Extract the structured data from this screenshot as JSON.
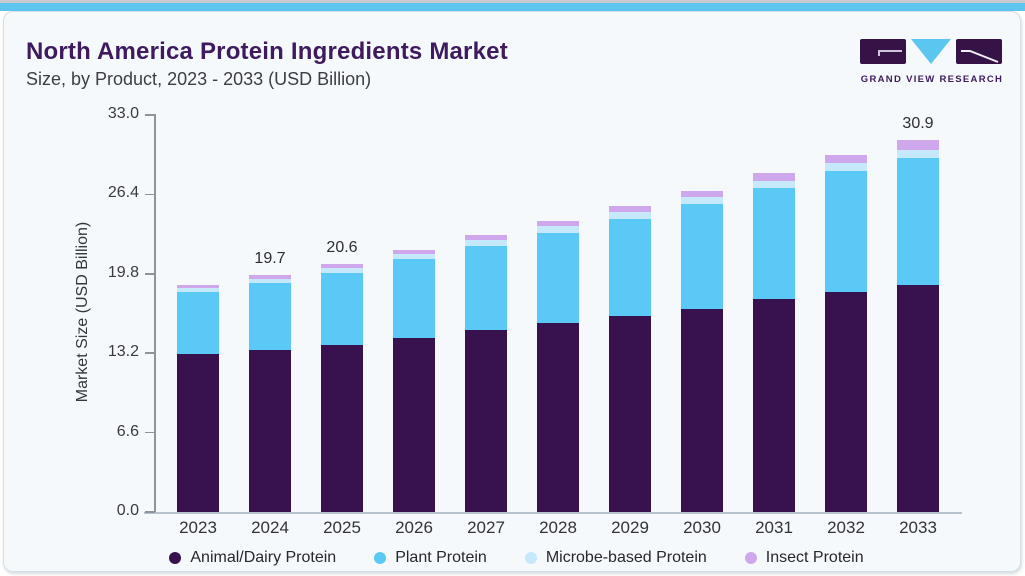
{
  "page": {
    "top_accent_color": "#5ec5ef",
    "card_background": "#f5f9fc"
  },
  "header": {
    "title": "North America Protein Ingredients Market",
    "subtitle": "Size, by Product, 2023 - 2033 (USD Billion)"
  },
  "brand": {
    "name": "GRAND VIEW RESEARCH",
    "logo_purple": "#351347",
    "logo_blue": "#5bc7f0"
  },
  "chart_data": {
    "type": "bar",
    "stacked": true,
    "title": "North America Protein Ingredients Market",
    "subtitle": "Size, by Product, 2023 - 2033 (USD Billion)",
    "xlabel": "",
    "ylabel": "Market Size (USD Billion)",
    "ylim": [
      0,
      33
    ],
    "ytick_labels": [
      "0.0",
      "6.6",
      "13.2",
      "19.8",
      "26.4",
      "33.0"
    ],
    "grid": false,
    "legend_position": "bottom",
    "categories": [
      "2023",
      "2024",
      "2025",
      "2026",
      "2027",
      "2028",
      "2029",
      "2030",
      "2031",
      "2032",
      "2033"
    ],
    "series": [
      {
        "name": "Animal/Dairy Protein",
        "color": "#37124e",
        "values": [
          13.1,
          13.5,
          13.9,
          14.5,
          15.1,
          15.7,
          16.3,
          16.9,
          17.7,
          18.3,
          18.9
        ]
      },
      {
        "name": "Plant Protein",
        "color": "#5bc9f5",
        "values": [
          5.15,
          5.5,
          5.95,
          6.5,
          7.0,
          7.5,
          8.05,
          8.7,
          9.2,
          10.05,
          10.5
        ]
      },
      {
        "name": "Microbe-based Protein",
        "color": "#c5e8fa",
        "values": [
          0.4,
          0.4,
          0.4,
          0.45,
          0.5,
          0.55,
          0.55,
          0.55,
          0.65,
          0.65,
          0.7
        ]
      },
      {
        "name": "Insect Protein",
        "color": "#cfa7ec",
        "values": [
          0.25,
          0.3,
          0.35,
          0.35,
          0.4,
          0.45,
          0.5,
          0.55,
          0.65,
          0.7,
          0.8
        ]
      }
    ],
    "totals": [
      18.9,
      19.7,
      20.6,
      21.8,
      23.0,
      24.2,
      25.4,
      26.7,
      28.2,
      29.7,
      30.9
    ],
    "bar_total_labels": [
      "",
      "19.7",
      "20.6",
      "",
      "",
      "",
      "",
      "",
      "",
      "",
      "30.9"
    ]
  }
}
